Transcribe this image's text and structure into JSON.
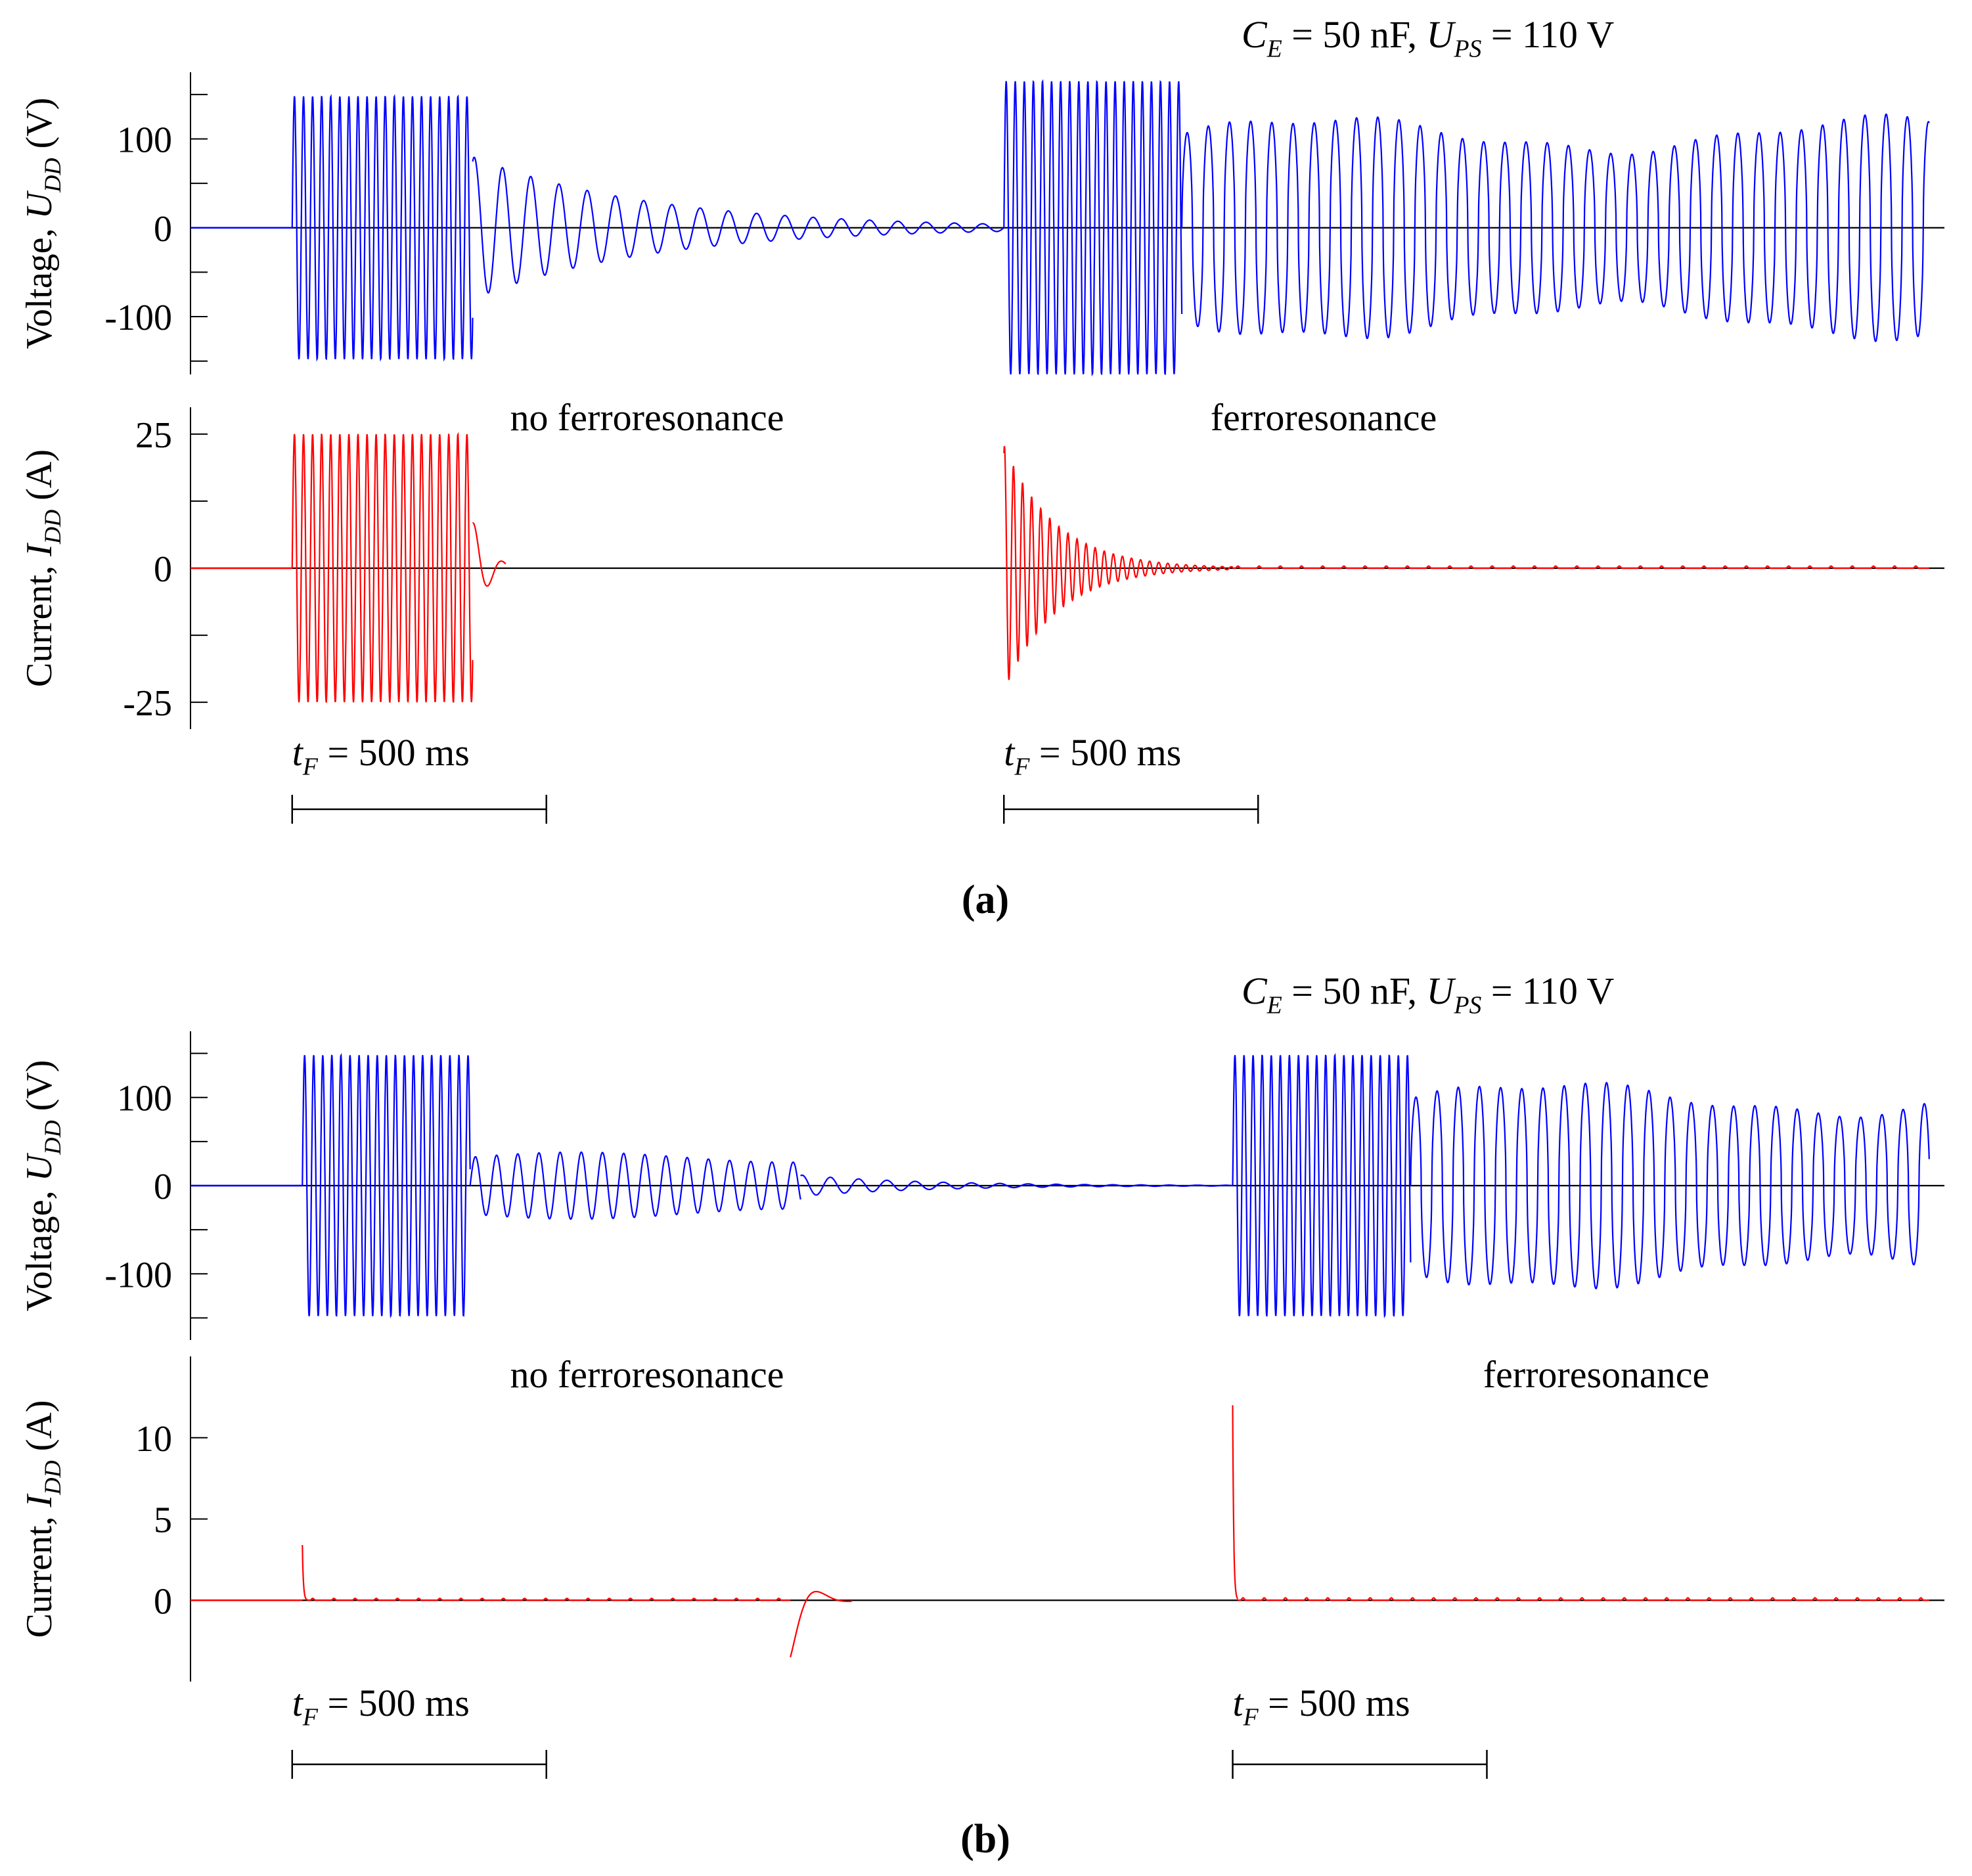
{
  "figure": {
    "panel_a_label": "(a)",
    "panel_b_label": "(b)"
  },
  "colors": {
    "voltage": "#0000ff",
    "current": "#ff0000",
    "axis": "#000000"
  },
  "chart_data": [
    {
      "id": "a",
      "type": "line",
      "params": {
        "C": "C",
        "C_sub": "E",
        "C_val": " = 50 nF, ",
        "U": "U",
        "U_sub": "PS",
        "U_val": " = 110 V"
      },
      "voltage": {
        "ylabel_pre": "Voltage, ",
        "ylabel_var": "U",
        "ylabel_sub": "DD",
        "ylabel_unit": " (V)",
        "ylim": [
          -165,
          175
        ],
        "ticks": [
          100,
          0,
          -100
        ],
        "tick_labels": [
          "100",
          "0",
          "-100"
        ],
        "minor_ticks": [
          150,
          50,
          -50,
          -150
        ],
        "segments": [
          {
            "kind": "sine",
            "t": [
              0.2,
              0.555
            ],
            "amp": 148,
            "f": 56
          },
          {
            "kind": "decay",
            "t": [
              0.555,
              1.6
            ],
            "amp": 80,
            "f": 18,
            "tau": 0.35
          },
          {
            "kind": "sine",
            "t": [
              1.6,
              1.95
            ],
            "amp": 165,
            "f": 56
          },
          {
            "kind": "ferro",
            "t": [
              1.95,
              3.42
            ],
            "amp": 128,
            "f": 24
          }
        ]
      },
      "current": {
        "ylabel_pre": "Current, ",
        "ylabel_var": "I",
        "ylabel_sub": "DD",
        "ylabel_unit": " (A)",
        "ylim": [
          -30,
          30
        ],
        "ticks": [
          25,
          0,
          -25
        ],
        "tick_labels": [
          "25",
          "0",
          "-25"
        ],
        "minor_ticks": [
          12.5,
          -12.5
        ],
        "segments": [
          {
            "kind": "sine",
            "t": [
              0.2,
              0.555
            ],
            "amp": 25,
            "f": 56
          },
          {
            "kind": "decay",
            "t": [
              0.555,
              0.62
            ],
            "amp": 9,
            "f": 18,
            "tau": 0.03
          },
          {
            "kind": "decay",
            "t": [
              1.6,
              2.05
            ],
            "amp": 23,
            "f": 56,
            "tau": 0.1
          },
          {
            "kind": "ripple",
            "t": [
              2.05,
              3.42
            ],
            "amp": 0.4,
            "f": 24
          }
        ]
      },
      "annotations": [
        {
          "text": "no ferroresonance",
          "region": "left"
        },
        {
          "text": "ferroresonance",
          "region": "right"
        }
      ],
      "scale_bars": [
        {
          "t_label": "t",
          "t_sub": "F",
          "text": " = 500 ms",
          "start": 0.2
        },
        {
          "t_label": "t",
          "t_sub": "F",
          "text": " = 500 ms",
          "start": 1.6
        }
      ]
    },
    {
      "id": "b",
      "type": "line",
      "params": {
        "C": "C",
        "C_sub": "E",
        "C_val": " = 50 nF, ",
        "U": "U",
        "U_sub": "PS",
        "U_val": " = 110 V"
      },
      "voltage": {
        "ylabel_pre": "Voltage, ",
        "ylabel_var": "U",
        "ylabel_sub": "DD",
        "ylabel_unit": " (V)",
        "ylim": [
          -175,
          175
        ],
        "ticks": [
          100,
          0,
          -100
        ],
        "tick_labels": [
          "100",
          "0",
          "-100"
        ],
        "minor_ticks": [
          150,
          50,
          -50,
          -150
        ],
        "segments": [
          {
            "kind": "sine",
            "t": [
              0.22,
              0.55
            ],
            "amp": 148,
            "f": 56
          },
          {
            "kind": "ferro_small",
            "t": [
              0.55,
              1.2
            ],
            "amp": 38,
            "f": 24
          },
          {
            "kind": "decay",
            "t": [
              1.2,
              2.05
            ],
            "amp": 12,
            "f": 18,
            "tau": 0.25
          },
          {
            "kind": "sine",
            "t": [
              2.05,
              2.4
            ],
            "amp": 148,
            "f": 56
          },
          {
            "kind": "ferro",
            "t": [
              2.4,
              3.42
            ],
            "amp": 120,
            "f": 24
          }
        ]
      },
      "current": {
        "ylabel_pre": "Current, ",
        "ylabel_var": "I",
        "ylabel_sub": "DD",
        "ylabel_unit": " (A)",
        "ylim": [
          -5,
          15
        ],
        "ticks": [
          10,
          5,
          0
        ],
        "tick_labels": [
          "10",
          "5",
          "0"
        ],
        "minor_ticks": [],
        "segments": [
          {
            "kind": "spike",
            "t": [
              0.22,
              0.23
            ],
            "amp": 3.4
          },
          {
            "kind": "ripple",
            "t": [
              0.23,
              1.18
            ],
            "amp": 0.12,
            "f": 24
          },
          {
            "kind": "bump",
            "t": [
              1.18,
              1.3
            ],
            "amp": 3.5
          },
          {
            "kind": "spike",
            "t": [
              2.05,
              2.06
            ],
            "amp": 12
          },
          {
            "kind": "ripple",
            "t": [
              2.06,
              3.42
            ],
            "amp": 0.15,
            "f": 24
          }
        ]
      },
      "annotations": [
        {
          "text": "no ferroresonance",
          "region": "left"
        },
        {
          "text": "ferroresonance",
          "region": "right"
        }
      ],
      "scale_bars": [
        {
          "t_label": "t",
          "t_sub": "F",
          "text": " = 500 ms",
          "start": 0.2
        },
        {
          "t_label": "t",
          "t_sub": "F",
          "text": " = 500 ms",
          "start": 2.05
        }
      ]
    }
  ]
}
